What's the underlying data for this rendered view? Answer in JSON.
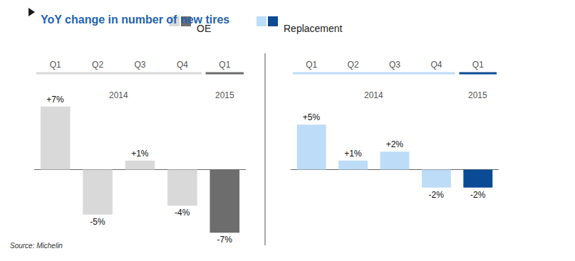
{
  "chart_data": {
    "type": "bar",
    "title": "YoY change in number of new tires",
    "source": "Source: Michelin",
    "categories": [
      "Q1",
      "Q2",
      "Q3",
      "Q4",
      "Q1"
    ],
    "years": [
      "2014",
      "2014",
      "2014",
      "2014",
      "2015"
    ],
    "series": [
      {
        "name": "OE",
        "colors": [
          "#d9d9d9",
          "#d9d9d9",
          "#d9d9d9",
          "#d9d9d9",
          "#6d6d6d"
        ],
        "values": [
          7,
          -5,
          1,
          -4,
          -7
        ],
        "value_labels": [
          "+7%",
          "-5%",
          "+1%",
          "-4%",
          "-7%"
        ]
      },
      {
        "name": "Replacement",
        "colors": [
          "#bddcf7",
          "#bddcf7",
          "#bddcf7",
          "#bddcf7",
          "#0b4a94"
        ],
        "values": [
          5,
          1,
          2,
          -2,
          -2
        ],
        "value_labels": [
          "+5%",
          "+1%",
          "+2%",
          "-2%",
          "-2%"
        ]
      }
    ],
    "data_labels": true,
    "tick_labels": "x",
    "grid": false
  }
}
